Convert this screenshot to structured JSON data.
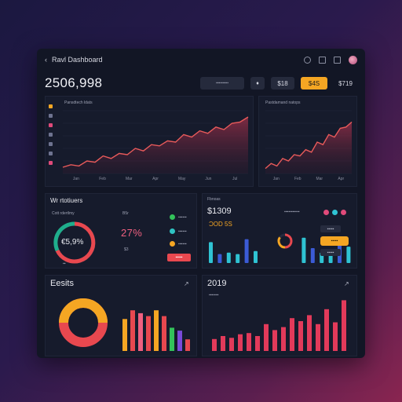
{
  "window": {
    "title": "Ravl Dashboard",
    "back_icon": "back-arrow-icon",
    "icons": [
      "clock-icon",
      "chat-icon",
      "bell-icon",
      "avatar"
    ]
  },
  "header": {
    "total": "2506,998",
    "controls": [
      {
        "label": "▪▪▪▪▪▪▪▪▪",
        "style": "wide"
      },
      {
        "label": "♦",
        "style": "icon"
      },
      {
        "label": "$18",
        "style": "m"
      },
      {
        "label": "$4S",
        "style": "orange"
      },
      {
        "label": "$719",
        "style": "plain"
      }
    ]
  },
  "main_chart": {
    "label": "Pansdtech ldats",
    "x_ticks": [
      "Jan",
      "Feb",
      "Mar",
      "Apr",
      "May",
      "Jun",
      "Jul"
    ]
  },
  "side_chart": {
    "label": "Pastdamand natops",
    "x_ticks": [
      "Jan",
      "Feb",
      "Mar",
      "Apr"
    ]
  },
  "widgets": {
    "title": "Wr rtotiuers",
    "subtitle": "Cott rdertlmy",
    "donut_value": "€5,9%",
    "donut_caption": "▪▪",
    "mini_label": "B5r",
    "pct_value": "27%",
    "pct_caption": "$3",
    "legend": [
      {
        "label": "▪▪▪▪▪▪",
        "color": "#33c25a"
      },
      {
        "label": "▪▪▪▪▪▪",
        "color": "#2fc3c3"
      },
      {
        "label": "▪▪▪▪▪▪",
        "color": "#f5a623"
      }
    ],
    "button": "▪▪▪▪▪"
  },
  "stats_panel": {
    "title_small": "Fbnoas",
    "value": "$1309",
    "sub_value": "ƆOD 5S",
    "filter_label": "▪▪▪▪▪▪▪▪▪▪▪",
    "btn_dark_1": "▪▪▪▪▪",
    "btn_orange": "▪▪▪▪▪",
    "btn_dark_2": "▪▪▪▪▪"
  },
  "bottom_left": {
    "title": "Eesits"
  },
  "bottom_right": {
    "title": "2019",
    "sub_label": "▪▪▪▪▪▪▪"
  },
  "colors": {
    "orange": "#f5a623",
    "red": "#e8484f",
    "pink": "#f06080",
    "cyan": "#2fc3d3",
    "green": "#33c25a",
    "purple": "#7a4ad8"
  },
  "chart_data": [
    {
      "type": "area",
      "name": "main-area",
      "values": [
        10,
        14,
        12,
        20,
        18,
        28,
        24,
        32,
        30,
        40,
        36,
        46,
        44,
        52,
        50,
        62,
        58,
        68,
        64,
        74,
        70,
        80,
        82,
        90
      ],
      "ylim": [
        0,
        100
      ]
    },
    {
      "type": "area",
      "name": "side-area",
      "values": [
        8,
        16,
        12,
        24,
        20,
        30,
        28,
        38,
        34,
        50,
        46,
        62,
        58,
        72,
        74,
        82
      ],
      "ylim": [
        0,
        100
      ]
    },
    {
      "type": "bar",
      "name": "stats-bars",
      "values": [
        70,
        30,
        35,
        30,
        80,
        40,
        85,
        50,
        35,
        30,
        75,
        55
      ],
      "ylim": [
        0,
        100
      ]
    },
    {
      "type": "pie",
      "name": "stats-donut",
      "values": [
        50,
        35,
        15
      ],
      "colors": [
        "#e8484f",
        "#f5a623",
        "#262b3e"
      ]
    },
    {
      "type": "bar",
      "name": "bottom-left-bars",
      "values": [
        55,
        70,
        65,
        60,
        70,
        60,
        40,
        35,
        20
      ],
      "colors": [
        "#f5a623",
        "#e8484f",
        "#f06080",
        "#e8484f",
        "#f5a623",
        "#e8484f",
        "#33c25a",
        "#7a4ad8",
        "#e8484f"
      ],
      "ylim": [
        0,
        100
      ]
    },
    {
      "type": "bar",
      "name": "bottom-right-bars",
      "values": [
        20,
        25,
        22,
        28,
        30,
        25,
        45,
        35,
        40,
        55,
        50,
        60,
        45,
        70,
        48,
        85
      ],
      "ylim": [
        0,
        100
      ]
    }
  ]
}
